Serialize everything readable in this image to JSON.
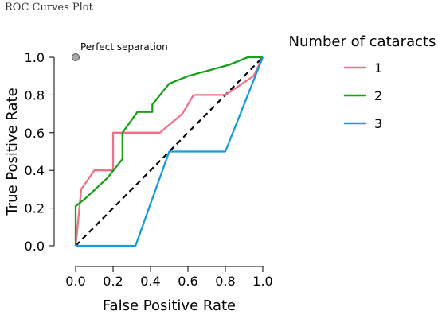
{
  "figure_title": "ROC Curves Plot",
  "chart_data": {
    "type": "line",
    "xlabel": "False Positive Rate",
    "ylabel": "True Positive Rate",
    "xlim": [
      0,
      1
    ],
    "ylim": [
      0,
      1
    ],
    "xticks": [
      "0.0",
      "0.2",
      "0.4",
      "0.6",
      "0.8",
      "1.0"
    ],
    "yticks": [
      "0.0",
      "0.2",
      "0.4",
      "0.6",
      "0.8",
      "1.0"
    ],
    "grid": false,
    "legend": {
      "title": "Number of cataracts",
      "placement": "right"
    },
    "series": [
      {
        "name": "1",
        "color": "#f0708a",
        "points": [
          [
            0,
            0
          ],
          [
            0.02,
            0.2
          ],
          [
            0.03,
            0.3
          ],
          [
            0.1,
            0.4
          ],
          [
            0.2,
            0.4
          ],
          [
            0.2,
            0.6
          ],
          [
            0.45,
            0.6
          ],
          [
            0.57,
            0.7
          ],
          [
            0.63,
            0.8
          ],
          [
            0.8,
            0.8
          ],
          [
            0.95,
            0.9
          ],
          [
            1.0,
            1.0
          ]
        ]
      },
      {
        "name": "2",
        "color": "#19a019",
        "points": [
          [
            0,
            0
          ],
          [
            0,
            0.21
          ],
          [
            0.05,
            0.25
          ],
          [
            0.17,
            0.36
          ],
          [
            0.25,
            0.46
          ],
          [
            0.25,
            0.6
          ],
          [
            0.33,
            0.71
          ],
          [
            0.41,
            0.71
          ],
          [
            0.41,
            0.75
          ],
          [
            0.5,
            0.86
          ],
          [
            0.6,
            0.9
          ],
          [
            0.82,
            0.96
          ],
          [
            0.92,
            1.0
          ],
          [
            1.0,
            1.0
          ]
        ]
      },
      {
        "name": "3",
        "color": "#1a9ad6",
        "points": [
          [
            0,
            0
          ],
          [
            0.32,
            0
          ],
          [
            0.5,
            0.5
          ],
          [
            0.8,
            0.5
          ],
          [
            1.0,
            1.0
          ]
        ]
      }
    ],
    "reference_line": {
      "from": [
        0,
        0
      ],
      "to": [
        1,
        1
      ],
      "style": "dashed",
      "color": "#000000"
    },
    "annotation": {
      "text": "Perfect separation",
      "x": 0,
      "y": 1
    }
  }
}
